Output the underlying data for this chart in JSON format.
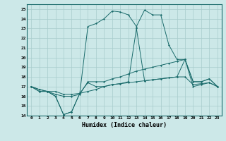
{
  "xlabel": "Humidex (Indice chaleur)",
  "bg_color": "#cce8e8",
  "line_color": "#1a6b6b",
  "grid_color": "#a8cccc",
  "xlim": [
    -0.5,
    23.5
  ],
  "ylim": [
    14,
    25.5
  ],
  "xticks": [
    0,
    1,
    2,
    3,
    4,
    5,
    6,
    7,
    8,
    9,
    10,
    11,
    12,
    13,
    14,
    15,
    16,
    17,
    18,
    19,
    20,
    21,
    22,
    23
  ],
  "yticks": [
    14,
    15,
    16,
    17,
    18,
    19,
    20,
    21,
    22,
    23,
    24,
    25
  ],
  "series": [
    [
      17.0,
      16.7,
      16.5,
      16.0,
      14.1,
      14.4,
      16.3,
      17.4,
      17.0,
      17.0,
      17.2,
      17.3,
      17.5,
      23.0,
      17.6,
      17.7,
      17.8,
      17.9,
      18.0,
      19.8,
      17.5,
      17.5,
      17.8,
      17.0
    ],
    [
      17.0,
      16.5,
      16.5,
      16.2,
      16.0,
      16.0,
      16.2,
      17.5,
      17.5,
      17.5,
      17.8,
      18.0,
      18.3,
      18.6,
      18.8,
      19.0,
      19.2,
      19.4,
      19.6,
      19.8,
      17.0,
      17.2,
      17.4,
      17.0
    ],
    [
      17.0,
      16.5,
      16.5,
      16.5,
      16.2,
      16.2,
      16.3,
      16.5,
      16.7,
      17.0,
      17.2,
      17.3,
      17.4,
      17.5,
      17.6,
      17.7,
      17.8,
      17.9,
      18.0,
      18.0,
      17.2,
      17.3,
      17.4,
      17.0
    ],
    [
      17.0,
      16.7,
      16.5,
      16.0,
      14.1,
      14.4,
      16.3,
      23.2,
      23.5,
      24.0,
      24.8,
      24.7,
      24.4,
      23.2,
      24.9,
      24.4,
      24.4,
      21.3,
      19.8,
      19.8,
      17.5,
      17.5,
      17.8,
      17.0
    ]
  ]
}
